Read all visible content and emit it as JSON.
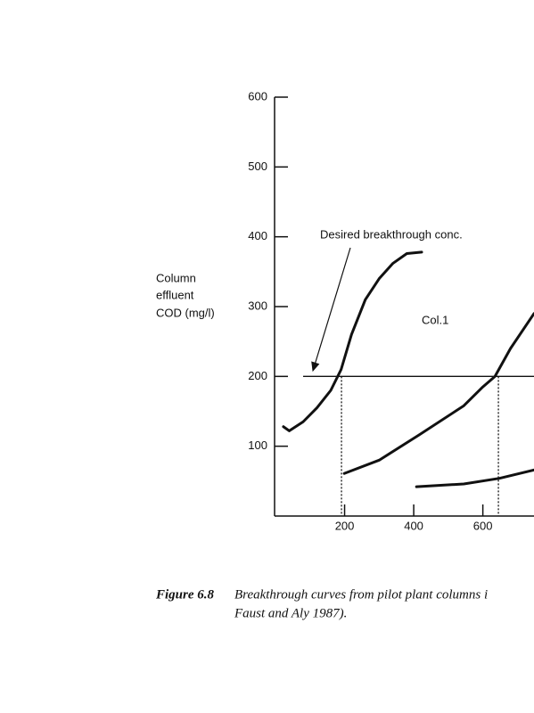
{
  "chart_data": {
    "type": "line",
    "y_label": [
      "Column",
      "effluent",
      "COD (mg/l)"
    ],
    "xlim": [
      0,
      748
    ],
    "ylim": [
      0,
      600
    ],
    "xticks": [
      200,
      400,
      600
    ],
    "yticks": [
      100,
      200,
      300,
      400,
      500,
      600
    ],
    "series": [
      {
        "color": "#111111",
        "x": [
          23,
          40,
          80,
          120,
          160,
          190,
          220,
          260,
          300,
          340,
          380,
          423
        ],
        "values": [
          128,
          122,
          135,
          155,
          180,
          210,
          260,
          310,
          340,
          362,
          376,
          378
        ]
      },
      {
        "color": "#111111",
        "x": [
          199,
          300,
          415,
          545,
          600,
          635,
          680,
          748
        ],
        "values": [
          61,
          80,
          116,
          158,
          185,
          200,
          240,
          290
        ]
      },
      {
        "color": "#111111",
        "x": [
          408,
          545,
          648,
          748
        ],
        "values": [
          42,
          46,
          54,
          66
        ]
      }
    ],
    "hline": {
      "y": 200,
      "x": [
        80,
        748
      ],
      "label": "Desired breakthrough conc."
    },
    "vlines": [
      191,
      645
    ],
    "annotation": "Col.1",
    "caption": {
      "number": "Figure 6.8",
      "lines": [
        "Breakthrough curves from pilot plant columns i",
        "Faust and Aly 1987)."
      ]
    }
  }
}
